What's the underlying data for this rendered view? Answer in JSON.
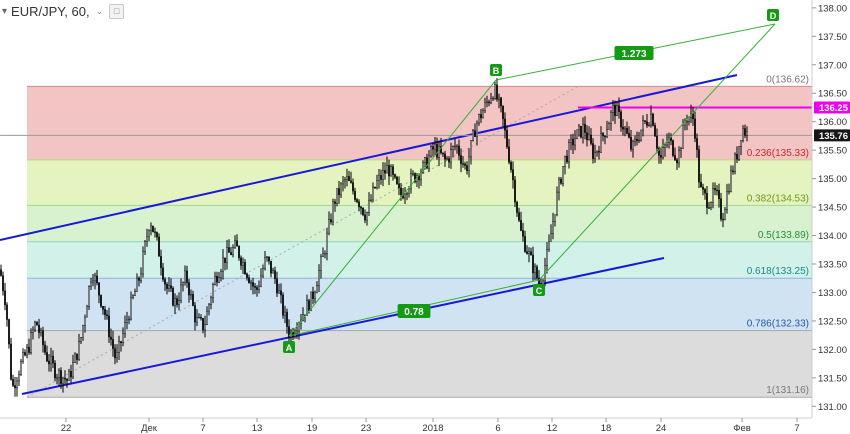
{
  "header": {
    "symbol": "EUR/JPY, 60,",
    "collapse_icon": "chevron-down-icon",
    "square_icon": "box-icon",
    "expand_icon": "dropdown-caret-icon"
  },
  "colors": {
    "candle": "#000000",
    "channel": "#1818d8",
    "wave": "#36b036",
    "marker": "#149a14",
    "magenta": "#ee00ee",
    "price_tag": "#161616"
  },
  "chart_data": {
    "type": "candlestick",
    "symbol": "EUR/JPY",
    "interval": "60",
    "ylim": [
      130.9,
      138.05
    ],
    "y_ticks": [
      "138.00",
      "137.50",
      "137.00",
      "136.50",
      "136.00",
      "135.50",
      "135.00",
      "134.50",
      "134.00",
      "133.50",
      "133.00",
      "132.50",
      "132.00",
      "131.50",
      "131.00"
    ],
    "x_ticks": [
      "22",
      "Дек",
      "7",
      "13",
      "19",
      "23",
      "2018",
      "6",
      "12",
      "18",
      "24",
      "Фев",
      "7"
    ],
    "current_price": "135.76",
    "level_price": "136.25",
    "fib_levels": [
      {
        "ratio": "0",
        "price": "136.62",
        "label": "0(136.62)",
        "fill": "#f2c4c4",
        "line": "#d88a8a",
        "text_color": "#777777"
      },
      {
        "ratio": "0.236",
        "price": "135.33",
        "label": "0.236(135.33)",
        "fill": "#e4f3c0",
        "line": "#b9d97a",
        "text_color": "#d02a2a"
      },
      {
        "ratio": "0.382",
        "price": "134.53",
        "label": "0.382(134.53)",
        "fill": "#d8f2d0",
        "line": "#9ed88e",
        "text_color": "#6f9a1a"
      },
      {
        "ratio": "0.5",
        "price": "133.89",
        "label": "0.5(133.89)",
        "fill": "#d2f1e8",
        "line": "#8fd4bf",
        "text_color": "#1f8f3f"
      },
      {
        "ratio": "0.618",
        "price": "133.25",
        "label": "0.618(133.25)",
        "fill": "#cfe3f2",
        "line": "#8ab6d8",
        "text_color": "#1a8a8a"
      },
      {
        "ratio": "0.786",
        "price": "132.33",
        "label": "0.786(132.33)",
        "fill": "#dcdcdc",
        "line": "#a8a8a8",
        "text_color": "#2a5aa8"
      },
      {
        "ratio": "1",
        "price": "131.16",
        "label": "1(131.16)",
        "fill": null,
        "line": "#a8a8a8",
        "text_color": "#777777"
      }
    ],
    "waves": [
      {
        "label": "A",
        "price": 132.2
      },
      {
        "label": "B",
        "price": 136.62
      },
      {
        "label": "C",
        "price": 133.12
      },
      {
        "label": "D",
        "price": 137.65
      }
    ],
    "ratio_labels": [
      "1.273",
      "0.78"
    ],
    "anchors": [
      [
        0,
        133.4
      ],
      [
        6,
        132.8
      ],
      [
        12,
        131.3
      ],
      [
        20,
        131.7
      ],
      [
        28,
        132.0
      ],
      [
        36,
        132.5
      ],
      [
        46,
        131.9
      ],
      [
        56,
        131.6
      ],
      [
        68,
        131.45
      ],
      [
        80,
        132.1
      ],
      [
        92,
        133.4
      ],
      [
        104,
        132.7
      ],
      [
        116,
        131.8
      ],
      [
        128,
        132.6
      ],
      [
        140,
        133.3
      ],
      [
        150,
        134.3
      ],
      [
        158,
        133.8
      ],
      [
        166,
        133.1
      ],
      [
        176,
        132.8
      ],
      [
        186,
        133.3
      ],
      [
        196,
        132.5
      ],
      [
        204,
        132.4
      ],
      [
        214,
        133.2
      ],
      [
        224,
        133.6
      ],
      [
        236,
        133.8
      ],
      [
        246,
        133.4
      ],
      [
        256,
        133.0
      ],
      [
        266,
        133.6
      ],
      [
        276,
        133.2
      ],
      [
        284,
        132.6
      ],
      [
        290,
        132.25
      ],
      [
        300,
        132.55
      ],
      [
        312,
        132.9
      ],
      [
        324,
        133.7
      ],
      [
        334,
        134.6
      ],
      [
        346,
        135.0
      ],
      [
        356,
        134.7
      ],
      [
        366,
        134.35
      ],
      [
        376,
        134.9
      ],
      [
        388,
        135.2
      ],
      [
        400,
        134.7
      ],
      [
        412,
        135.0
      ],
      [
        424,
        135.2
      ],
      [
        434,
        135.55
      ],
      [
        446,
        135.3
      ],
      [
        456,
        135.6
      ],
      [
        466,
        135.15
      ],
      [
        476,
        135.95
      ],
      [
        486,
        136.3
      ],
      [
        494,
        136.58
      ],
      [
        502,
        136.1
      ],
      [
        512,
        135.1
      ],
      [
        520,
        134.1
      ],
      [
        530,
        133.6
      ],
      [
        540,
        133.12
      ],
      [
        548,
        133.7
      ],
      [
        556,
        134.6
      ],
      [
        564,
        135.3
      ],
      [
        574,
        135.7
      ],
      [
        584,
        135.9
      ],
      [
        594,
        135.4
      ],
      [
        604,
        135.8
      ],
      [
        614,
        136.25
      ],
      [
        624,
        135.9
      ],
      [
        632,
        135.5
      ],
      [
        642,
        135.9
      ],
      [
        652,
        136.15
      ],
      [
        660,
        135.3
      ],
      [
        668,
        135.7
      ],
      [
        678,
        135.35
      ],
      [
        686,
        136.1
      ],
      [
        694,
        136.05
      ],
      [
        700,
        134.8
      ],
      [
        708,
        134.6
      ],
      [
        716,
        134.75
      ],
      [
        722,
        134.3
      ],
      [
        730,
        135.0
      ],
      [
        738,
        135.5
      ],
      [
        742,
        135.9
      ],
      [
        748,
        135.76
      ]
    ]
  }
}
